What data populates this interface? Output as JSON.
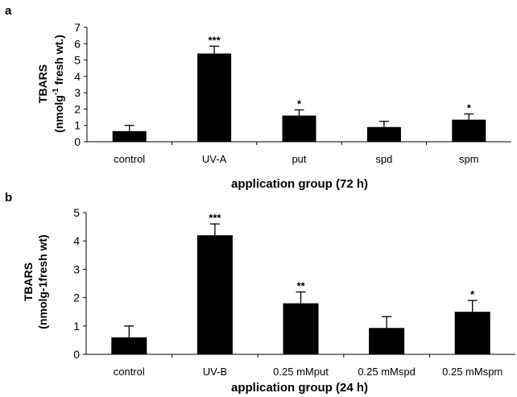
{
  "chart_data": [
    {
      "type": "bar",
      "panel_label": "a",
      "categories": [
        "control",
        "UV-A",
        "put",
        "spd",
        "spm"
      ],
      "values": [
        0.65,
        5.4,
        1.6,
        0.9,
        1.35
      ],
      "errors": [
        0.35,
        0.45,
        0.35,
        0.35,
        0.35
      ],
      "significance": [
        "",
        "***",
        "*",
        "",
        "*"
      ],
      "ylabel_main": "TBARS",
      "ylabel_unit_pre": "(nmolg",
      "ylabel_unit_sup": "-1",
      "ylabel_unit_post": " fresh wt.)",
      "xlabel": "application group (72 h)",
      "ylim": [
        0,
        7
      ],
      "yticks": [
        0,
        1,
        2,
        3,
        4,
        5,
        6,
        7
      ],
      "grid": false
    },
    {
      "type": "bar",
      "panel_label": "b",
      "categories": [
        "control",
        "UV-B",
        "0.25 mMput",
        "0.25 mMspd",
        "0.25 mMspm"
      ],
      "values": [
        0.6,
        4.2,
        1.8,
        0.93,
        1.5
      ],
      "errors": [
        0.4,
        0.4,
        0.4,
        0.4,
        0.4
      ],
      "significance": [
        "",
        "***",
        "**",
        "",
        "*"
      ],
      "ylabel_main": "TBARS",
      "ylabel_unit": "(nmolg-1fresh wt)",
      "xlabel": "application group (24 h)",
      "ylim": [
        0,
        5
      ],
      "yticks": [
        0,
        1,
        2,
        3,
        4,
        5
      ],
      "grid": false
    }
  ],
  "colors": {
    "bar": "#000000",
    "axis": "#000000"
  }
}
